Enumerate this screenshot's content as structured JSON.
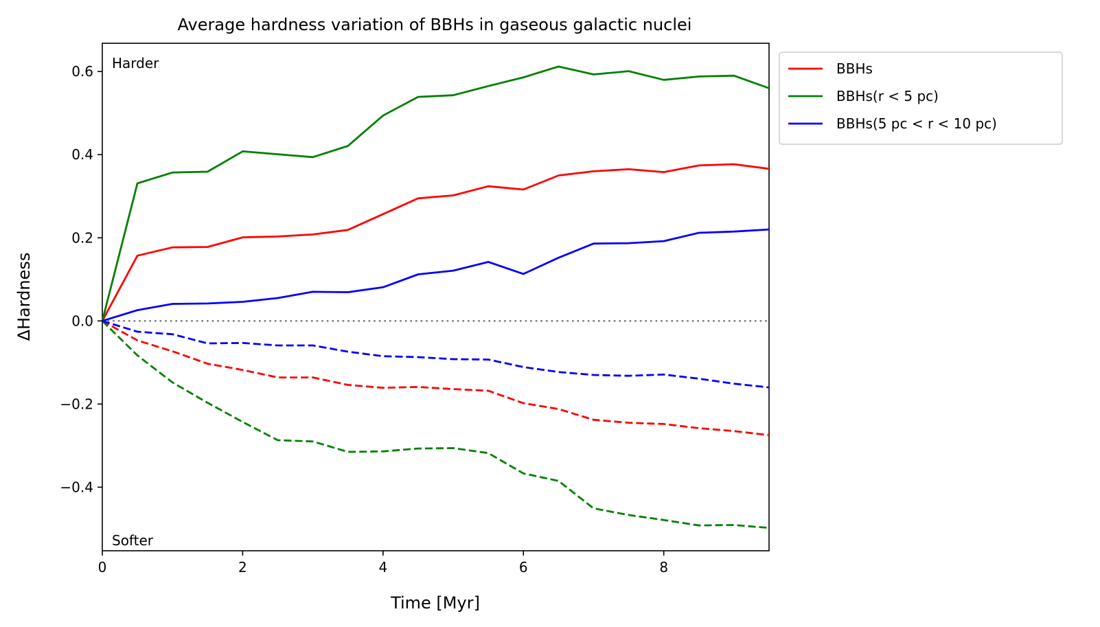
{
  "chart_data": {
    "type": "line",
    "title": "Average hardness variation of BBHs in gaseous galactic nuclei",
    "xlabel": "Time [Myr]",
    "ylabel": "ΔHardness",
    "xlim": [
      0,
      9.5
    ],
    "ylim": [
      -0.553,
      0.668
    ],
    "xticks": [
      0,
      2,
      4,
      6,
      8
    ],
    "xtick_labels": [
      "0",
      "2",
      "4",
      "6",
      "8"
    ],
    "yticks": [
      -0.4,
      -0.2,
      0.0,
      0.2,
      0.4,
      0.6
    ],
    "ytick_labels": [
      "−0.4",
      "−0.2",
      "0.0",
      "0.2",
      "0.4",
      "0.6"
    ],
    "grid": false,
    "legend_placement": "outside upper right",
    "annotations": {
      "top": "Harder",
      "bottom": "Softer"
    },
    "reference_line": {
      "y": 0.0,
      "style": "dotted",
      "color": "#808080"
    },
    "x": [
      0,
      0.5,
      1.0,
      1.5,
      2.0,
      2.5,
      3.0,
      3.5,
      4.0,
      4.5,
      5.0,
      5.5,
      6.0,
      6.5,
      7.0,
      7.5,
      8.0,
      8.5,
      9.0,
      9.5
    ],
    "series": [
      {
        "name": "BBHs",
        "color": "#ff0000",
        "style": "solid",
        "legend": true,
        "values": [
          0.0,
          0.157,
          0.177,
          0.178,
          0.201,
          0.203,
          0.208,
          0.219,
          0.257,
          0.295,
          0.302,
          0.324,
          0.316,
          0.35,
          0.36,
          0.365,
          0.358,
          0.374,
          0.377,
          0.366
        ]
      },
      {
        "name": "BBHs(r < 5 pc)",
        "color": "#008000",
        "style": "solid",
        "legend": true,
        "values": [
          0.0,
          0.331,
          0.357,
          0.359,
          0.408,
          0.401,
          0.394,
          0.421,
          0.494,
          0.539,
          0.543,
          0.565,
          0.586,
          0.612,
          0.593,
          0.601,
          0.58,
          0.588,
          0.59,
          0.56
        ]
      },
      {
        "name": "BBHs(5 pc < r < 10 pc)",
        "color": "#0000ff",
        "style": "solid",
        "legend": true,
        "values": [
          0.0,
          0.026,
          0.041,
          0.042,
          0.046,
          0.055,
          0.07,
          0.069,
          0.081,
          0.112,
          0.121,
          0.142,
          0.113,
          0.152,
          0.186,
          0.187,
          0.192,
          0.212,
          0.215,
          0.22
        ]
      },
      {
        "color": "#ff0000",
        "style": "dashed",
        "legend": false,
        "values": [
          0.0,
          -0.047,
          -0.073,
          -0.103,
          -0.118,
          -0.136,
          -0.136,
          -0.154,
          -0.161,
          -0.159,
          -0.164,
          -0.168,
          -0.198,
          -0.212,
          -0.238,
          -0.245,
          -0.248,
          -0.258,
          -0.265,
          -0.275
        ]
      },
      {
        "color": "#008000",
        "style": "dashed",
        "legend": false,
        "values": [
          0.0,
          -0.083,
          -0.148,
          -0.197,
          -0.243,
          -0.287,
          -0.29,
          -0.315,
          -0.314,
          -0.307,
          -0.306,
          -0.318,
          -0.367,
          -0.385,
          -0.451,
          -0.467,
          -0.479,
          -0.492,
          -0.491,
          -0.498
        ]
      },
      {
        "color": "#0000ff",
        "style": "dashed",
        "legend": false,
        "values": [
          0.0,
          -0.026,
          -0.032,
          -0.054,
          -0.053,
          -0.059,
          -0.059,
          -0.074,
          -0.085,
          -0.087,
          -0.092,
          -0.093,
          -0.111,
          -0.123,
          -0.13,
          -0.132,
          -0.129,
          -0.139,
          -0.151,
          -0.16
        ]
      }
    ]
  }
}
